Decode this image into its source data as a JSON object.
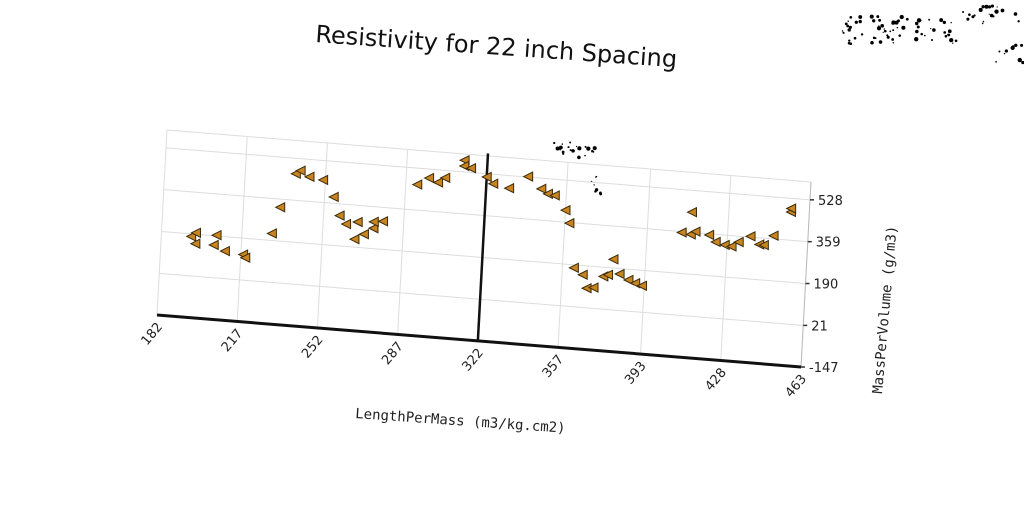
{
  "chart_data": {
    "type": "scatter",
    "title": "Resistivity for 22 inch Spacing",
    "xlabel": "LengthPerMass (m3/kg.cm2)",
    "ylabel": "MassPerVolume (g/m3)",
    "x_ticks": [
      "182",
      "217",
      "252",
      "287",
      "322",
      "357",
      "393",
      "428",
      "463"
    ],
    "y_ticks": [
      "-147",
      "21",
      "190",
      "359",
      "528"
    ],
    "xlim": [
      182,
      463
    ],
    "ylim": [
      -147,
      600
    ],
    "grid": true,
    "marker": "triangle-left",
    "color": "#c8841f",
    "reference_line_x": 322,
    "series": [
      {
        "points": [
          [
            195,
            180
          ],
          [
            197,
            196
          ],
          [
            206,
            193
          ],
          [
            197,
            152
          ],
          [
            205,
            153
          ],
          [
            210,
            132
          ],
          [
            218,
            124
          ],
          [
            219,
            112
          ],
          [
            230,
            218
          ],
          [
            233,
            326
          ],
          [
            239,
            466
          ],
          [
            241,
            480
          ],
          [
            245,
            458
          ],
          [
            251,
            450
          ],
          [
            256,
            385
          ],
          [
            259,
            312
          ],
          [
            262,
            280
          ],
          [
            267,
            292
          ],
          [
            266,
            222
          ],
          [
            270,
            245
          ],
          [
            274,
            272
          ],
          [
            274,
            298
          ],
          [
            278,
            303
          ],
          [
            292,
            462
          ],
          [
            297,
            492
          ],
          [
            301,
            477
          ],
          [
            304,
            498
          ],
          [
            312,
            575
          ],
          [
            312,
            552
          ],
          [
            315,
            545
          ],
          [
            322,
            515
          ],
          [
            325,
            490
          ],
          [
            332,
            477
          ],
          [
            340,
            530
          ],
          [
            346,
            485
          ],
          [
            349,
            467
          ],
          [
            352,
            463
          ],
          [
            357,
            407
          ],
          [
            359,
            356
          ],
          [
            362,
            178
          ],
          [
            366,
            153
          ],
          [
            368,
            100
          ],
          [
            371,
            105
          ],
          [
            375,
            153
          ],
          [
            377,
            161
          ],
          [
            379,
            225
          ],
          [
            382,
            168
          ],
          [
            386,
            147
          ],
          [
            389,
            136
          ],
          [
            392,
            128
          ],
          [
            408,
            355
          ],
          [
            412,
            440
          ],
          [
            412,
            350
          ],
          [
            414,
            363
          ],
          [
            420,
            354
          ],
          [
            423,
            328
          ],
          [
            427,
            319
          ],
          [
            430,
            315
          ],
          [
            433,
            335
          ],
          [
            438,
            362
          ],
          [
            442,
            332
          ],
          [
            444,
            331
          ],
          [
            448,
            372
          ],
          [
            455,
            473
          ],
          [
            455,
            487
          ]
        ]
      }
    ]
  }
}
